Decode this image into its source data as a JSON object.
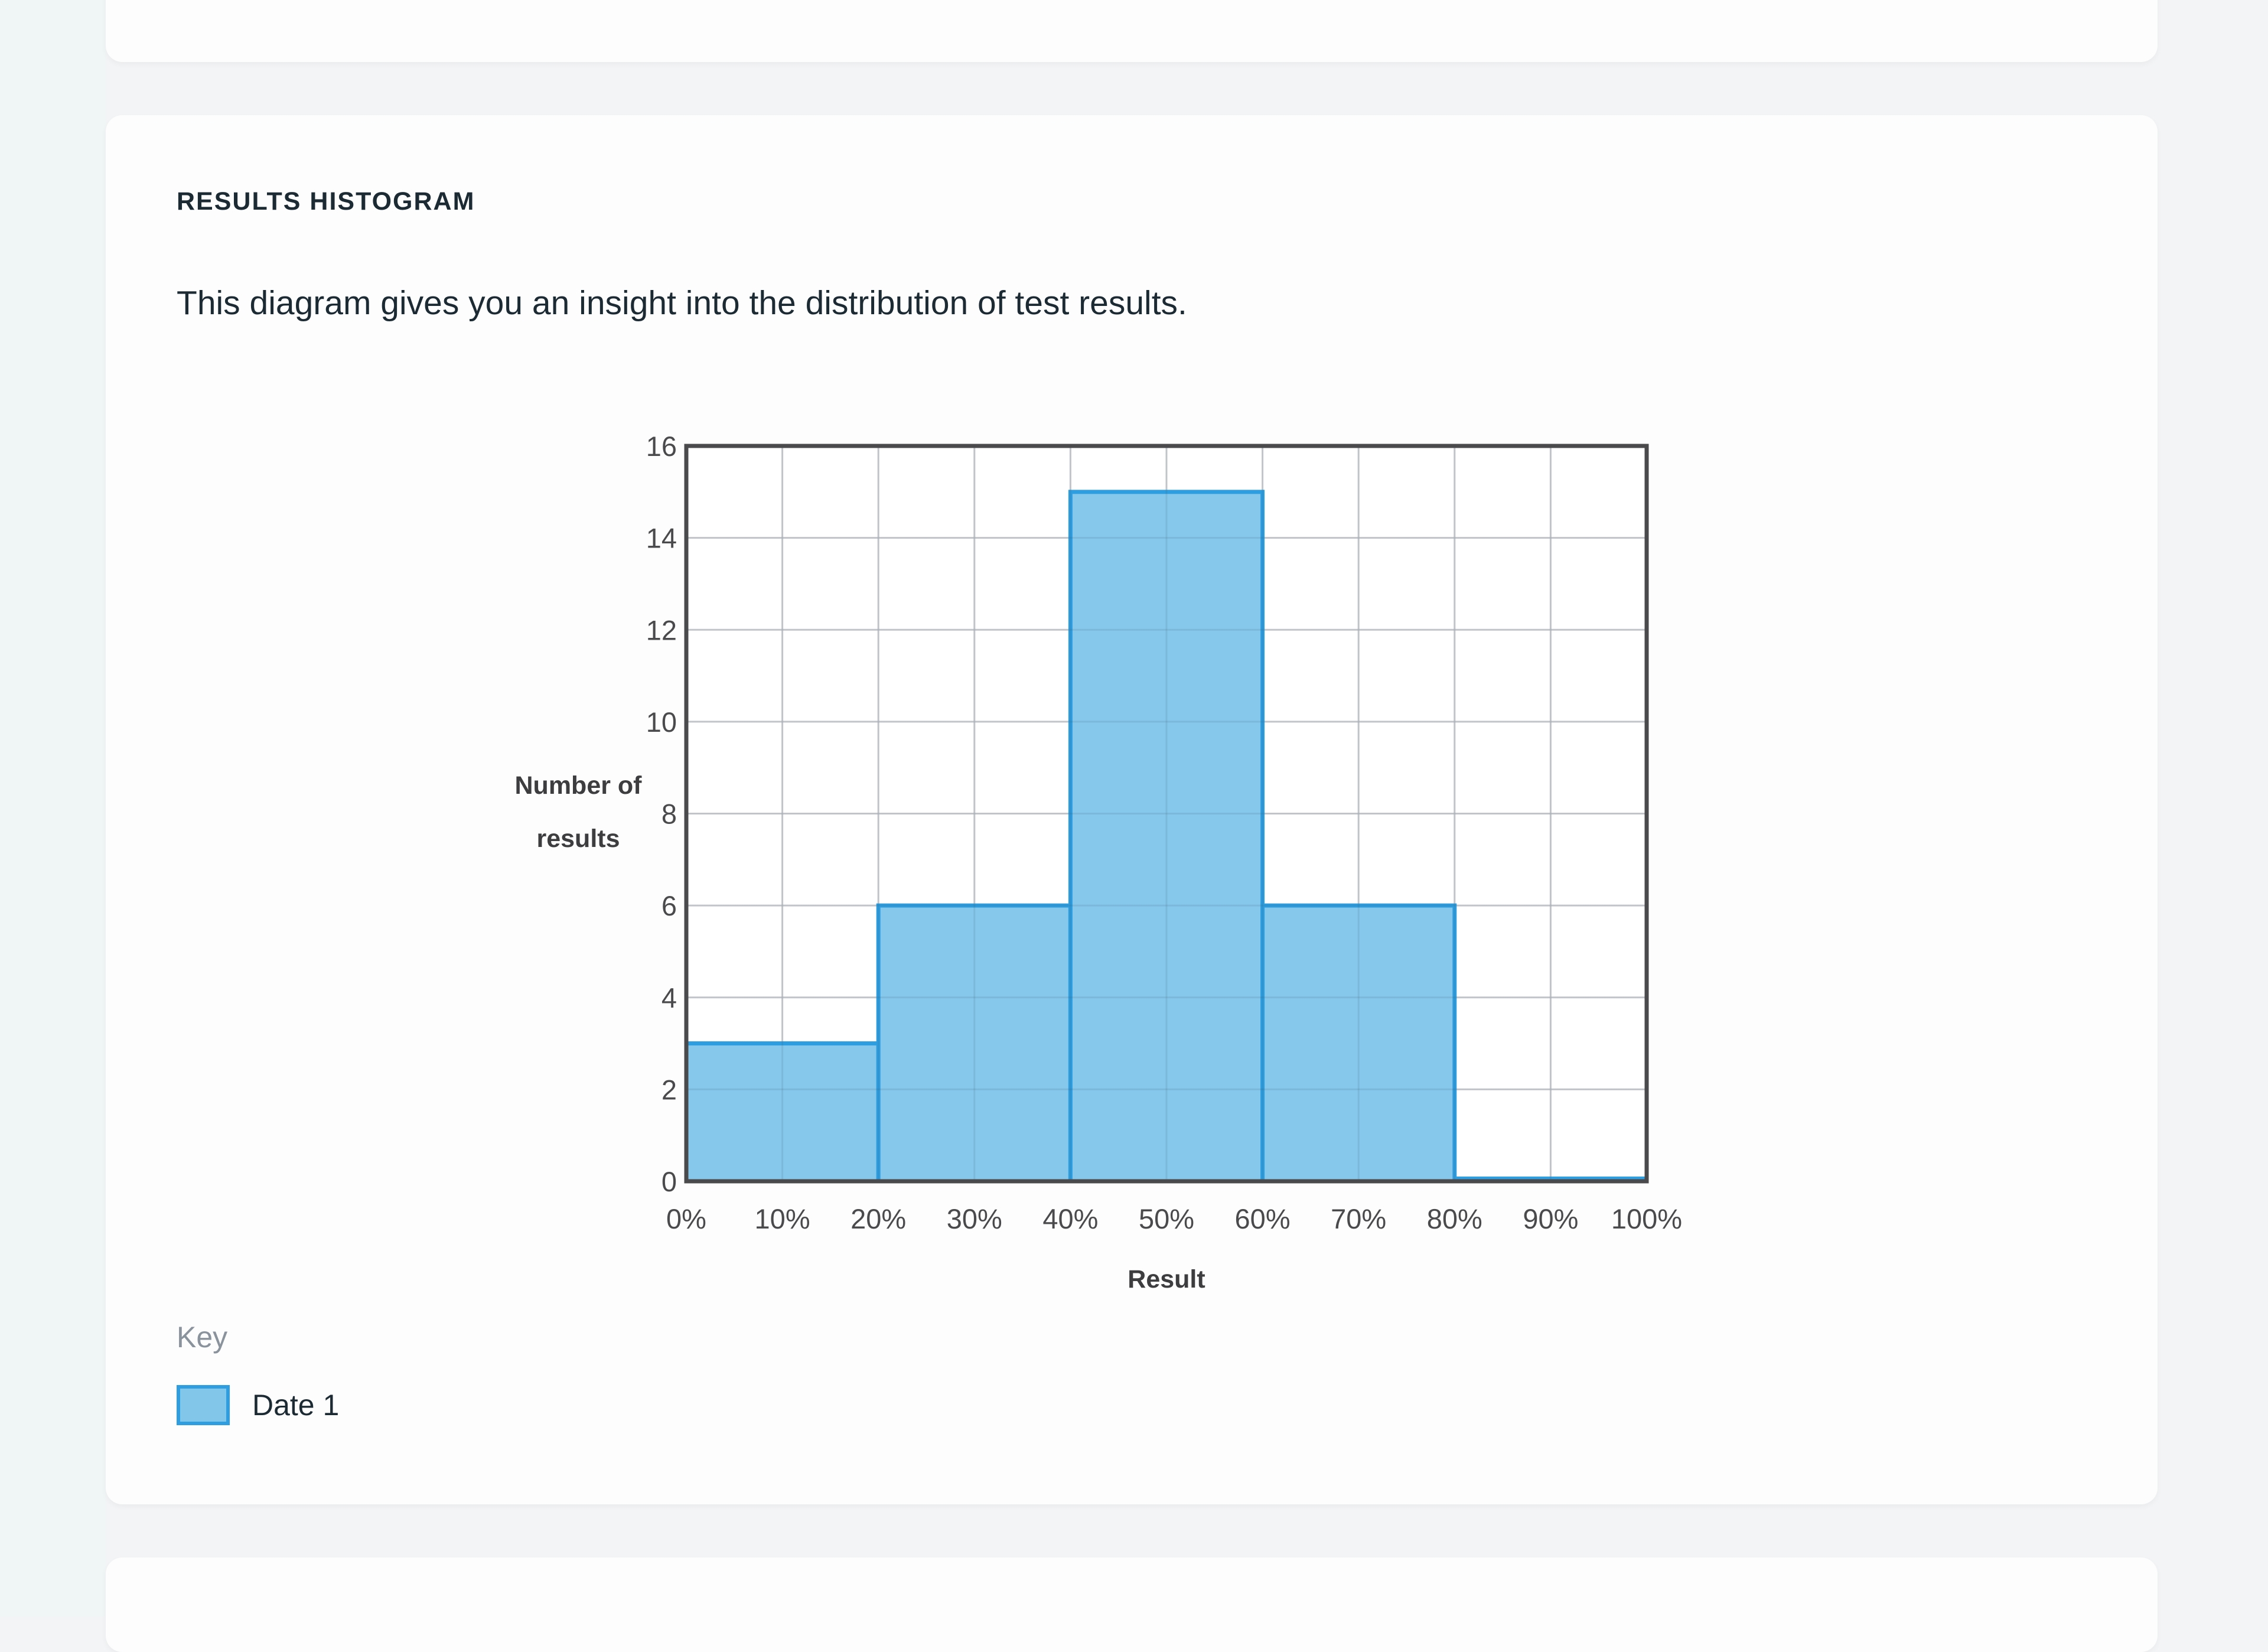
{
  "section": {
    "title": "RESULTS HISTOGRAM",
    "description": "This diagram gives you an insight into the distribution of test results."
  },
  "legend": {
    "heading": "Key",
    "items": [
      {
        "label": "Date 1",
        "fill": "#82c6ea",
        "stroke": "#2f9ee0"
      }
    ]
  },
  "colors": {
    "bar_fill": "#82c6ea",
    "bar_stroke": "#2f9ee0",
    "axis": "#4a4a4d",
    "grid": "#d4d4d8",
    "text": "#1c2b33"
  },
  "chart_data": {
    "type": "bar",
    "title": "Results Histogram",
    "xlabel": "Result",
    "ylabel": "Number of results",
    "ylabel_lines": [
      "Number of",
      "results"
    ],
    "x_ticks": [
      "0%",
      "10%",
      "20%",
      "30%",
      "40%",
      "50%",
      "60%",
      "70%",
      "80%",
      "90%",
      "100%"
    ],
    "y_ticks": [
      0,
      2,
      4,
      6,
      8,
      10,
      12,
      14,
      16
    ],
    "ylim": [
      0,
      16
    ],
    "xlim": [
      0,
      100
    ],
    "grid": true,
    "legend_position": "bottom-left",
    "categories": [
      "0-20%",
      "20-40%",
      "40-60%",
      "60-80%",
      "80-100%"
    ],
    "bins": [
      [
        0,
        20
      ],
      [
        20,
        40
      ],
      [
        40,
        60
      ],
      [
        60,
        80
      ],
      [
        80,
        100
      ]
    ],
    "series": [
      {
        "name": "Date 1",
        "values": [
          3,
          6,
          15,
          6,
          0
        ]
      }
    ]
  }
}
